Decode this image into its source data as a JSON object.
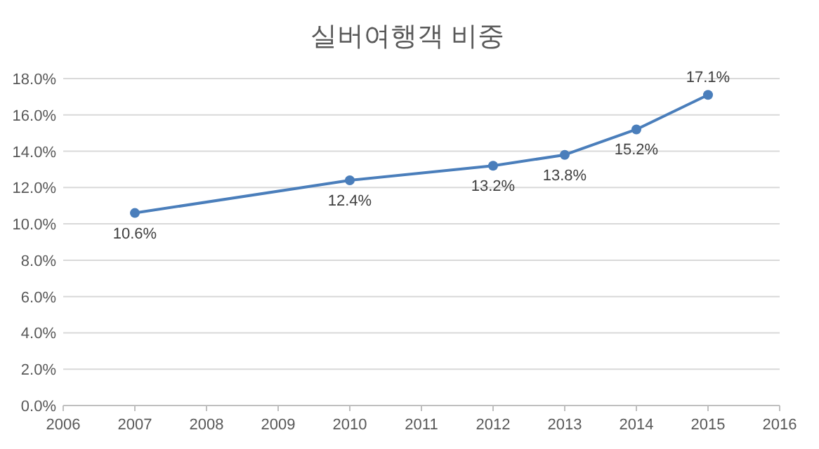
{
  "chart_data": {
    "type": "line",
    "title": "실버여행객 비중",
    "x": [
      2007,
      2010,
      2012,
      2013,
      2014,
      2015
    ],
    "series": [
      {
        "color": "#4a7ebb",
        "values": [
          10.6,
          12.4,
          13.2,
          13.8,
          15.2,
          17.1
        ],
        "value_labels": [
          "10.6%",
          "12.4%",
          "13.2%",
          "13.8%",
          "15.2%",
          "17.1%"
        ]
      }
    ],
    "xlim": [
      2006,
      2016
    ],
    "xticks": [
      2006,
      2007,
      2008,
      2009,
      2010,
      2011,
      2012,
      2013,
      2014,
      2015,
      2016
    ],
    "ylim": [
      0,
      18
    ],
    "yticks": [
      {
        "value": 0,
        "label": "0.0%"
      },
      {
        "value": 2,
        "label": "2.0%"
      },
      {
        "value": 4,
        "label": "4.0%"
      },
      {
        "value": 6,
        "label": "6.0%"
      },
      {
        "value": 8,
        "label": "8.0%"
      },
      {
        "value": 10,
        "label": "10.0%"
      },
      {
        "value": 12,
        "label": "12.0%"
      },
      {
        "value": 14,
        "label": "14.0%"
      },
      {
        "value": 16,
        "label": "16.0%"
      },
      {
        "value": 18,
        "label": "18.0%"
      }
    ],
    "grid": "y",
    "marker": "circle",
    "line_style": "solid"
  }
}
